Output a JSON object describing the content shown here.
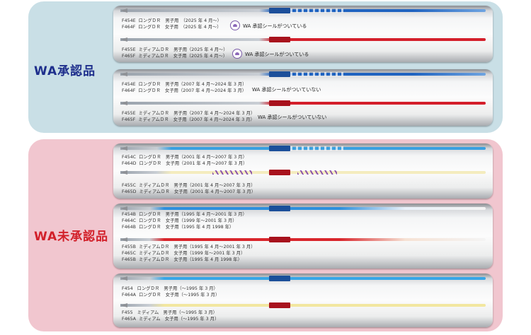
{
  "approved": {
    "label": "WA承認品",
    "panels": [
      {
        "groups": [
          {
            "lines": [
              "F454E  ロングＤＲ　男子用　（2025 年 4 月～）",
              "F464F  ロングＤＲ　女子用　（2025 年 4 月～）"
            ],
            "note": "WA 承認シールがついている",
            "has_seal": true,
            "color": "blue"
          },
          {
            "lines": [
              "F455E  ミディアムＤＲ　男子用（2025 年 4 月～）",
              "F465F  ミディアムＤＲ　女子用（2025 年 4 月～）"
            ],
            "note": "WA 承認シールがついている",
            "has_seal": true,
            "color": "red"
          }
        ]
      },
      {
        "groups": [
          {
            "lines": [
              "F454E  ロングＤＲ　男子用（2007 年 4 月～2024 年 3 月）",
              "F464F  ロングＤＲ　女子用（2007 年 4 月～2024 年 3 月）"
            ],
            "note": "WA 承認シールがついていない",
            "has_seal": false,
            "color": "blue"
          },
          {
            "lines": [
              "F455E  ミディアムＤＲ　男子用（2007 年 4 月～2024 年 3 月）",
              "F465F  ミディアムＤＲ　女子用（2007 年 4 月～2024 年 3 月）"
            ],
            "note": "WA 承認シールがついていない",
            "has_seal": false,
            "color": "red"
          }
        ]
      }
    ]
  },
  "unapproved": {
    "label": "WA未承認品",
    "panels": [
      {
        "groups": [
          {
            "lines": [
              "F454C  ロングＤＲ　男子用（2001 年 4 月～2007 年 3 月）",
              "F464D  ロングＤＲ　女子用（2001 年 4 月～2007 年 3 月）"
            ],
            "note": "",
            "has_seal": false,
            "color": "lightblue"
          },
          {
            "lines": [
              "F455C  ミディアムＤＲ　男子用（2001 年 4 月～2007 年 3 月）",
              "F465D  ミディアムＤＲ　女子用（2001 年 4 月～2007 年 3 月）"
            ],
            "note": "",
            "has_seal": false,
            "color": "cream"
          }
        ]
      },
      {
        "groups": [
          {
            "lines": [
              "F454B  ロングＤＲ　男子用（1995 年 4 月～2001 年 3 月）",
              "F464C  ロングＤＲ　女子用（1999 年～2001 年 3 月）",
              "F464B  ロングＤＲ　女子用（1995 年 4 月 1998 年）"
            ],
            "note": "",
            "has_seal": false,
            "color": "fadeblue"
          },
          {
            "lines": [
              "F455B  ミディアムＤＲ　男子用（1995 年 4 月～2001 年 3 月）",
              "F465C  ミディアムＤＲ　女子用（1999 年～2001 年 3 月）",
              "F465B  ミディアムＤＲ　女子用（1995 年 4 月 1998 年）"
            ],
            "note": "",
            "has_seal": false,
            "color": "fadered"
          }
        ]
      },
      {
        "groups": [
          {
            "lines": [
              "F454   ロングＤＲ　男子用（～1995 年 3 月）",
              "F464A  ロングＤＲ　女子用（～1995 年 3 月）"
            ],
            "note": "",
            "has_seal": false,
            "color": "skyblue"
          },
          {
            "lines": [
              "F455   ミディアム　男子用（～1995 年 3 月）",
              "F465A  ミディアム　女子用（～1995 年 3 月）"
            ],
            "note": "",
            "has_seal": false,
            "color": "yellow"
          }
        ]
      }
    ]
  },
  "colors": {
    "blue": "#1f63c0",
    "red": "#d41f2b",
    "lightblue": "#3aa0e0",
    "cream": "#f4ecbe",
    "fadeblue": "#2e8fdc",
    "fadered": "#d9262c",
    "skyblue": "#38a6e6",
    "yellow": "#f2e7a0",
    "grip_blue": "#1c4f9a",
    "grip_red": "#a8121d",
    "section_approved": "#c9dfe6",
    "section_unapproved": "#f1c6cf"
  }
}
